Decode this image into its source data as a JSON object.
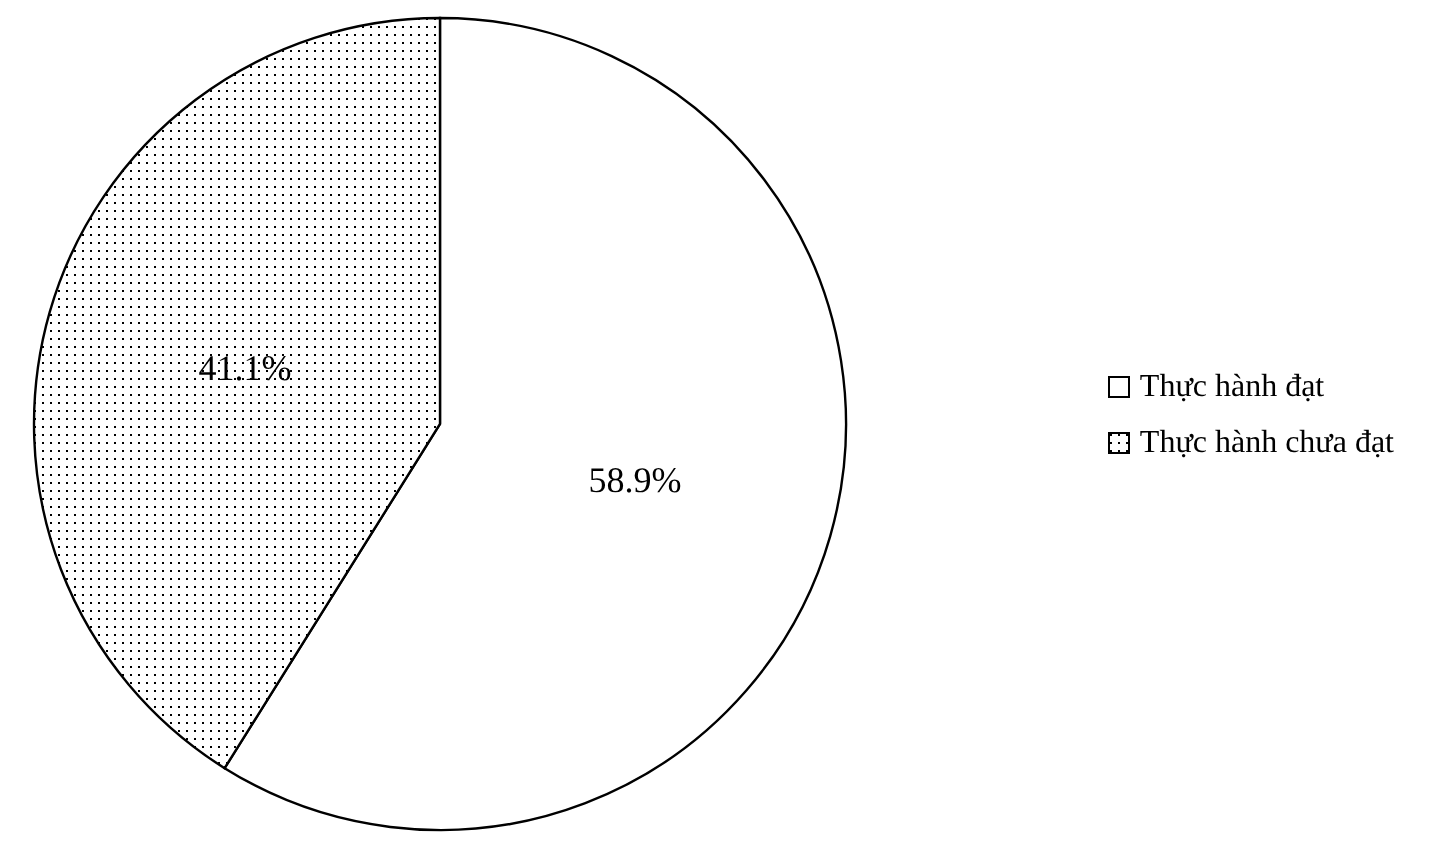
{
  "chart_data": {
    "type": "pie",
    "categories": [
      "Thực hành đạt",
      "Thực hành chưa đạt"
    ],
    "values": [
      58.9,
      41.1
    ],
    "colors": [
      "#ffffff",
      "#000000"
    ],
    "value_labels": [
      "58.9%",
      "41.1%"
    ],
    "legend": "right"
  }
}
